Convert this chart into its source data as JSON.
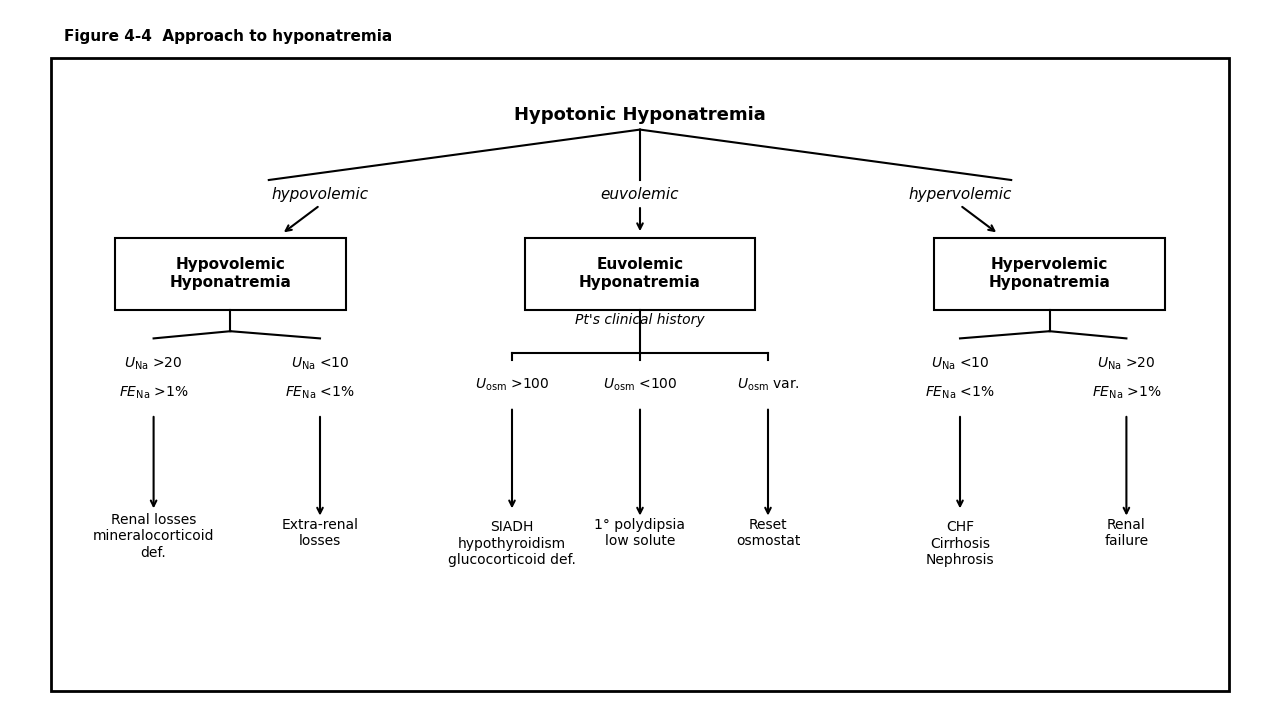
{
  "figure_title": "Figure 4-4  Approach to hyponatremia",
  "bg_color": "#ffffff",
  "box_color": "#ffffff",
  "box_edge_color": "#000000",
  "text_color": "#000000",
  "title_text": "Hypotonic Hyponatremia",
  "branch_labels": [
    "hypovolemic",
    "euvolemic",
    "hypervolemic"
  ],
  "box1_text": "Hypovolemic\nHyponatremia",
  "box2_text": "Euvolemic\nHyponatremia",
  "box3_text": "Hypervolemic\nHyponatremia",
  "hypo_branch_left_label1": "U",
  "hypo_branch_left_sub1": "Na",
  "hypo_branch_left_val1": " >20",
  "hypo_branch_left_label2": "FE",
  "hypo_branch_left_sub2": "Na",
  "hypo_branch_left_val2": " >1%",
  "hypo_branch_right_label1": "U",
  "hypo_branch_right_sub1": "Na",
  "hypo_branch_right_val1": " <10",
  "hypo_branch_right_label2": "FE",
  "hypo_branch_right_sub2": "Na",
  "hypo_branch_right_val2": " <1%",
  "euvo_branch_center": "Pt's clinical history",
  "euvo_left_label1": "U",
  "euvo_left_sub1": "osm",
  "euvo_left_val1": " >100",
  "euvo_mid_label1": "U",
  "euvo_mid_sub1": "osm",
  "euvo_mid_val1": " <100",
  "euvo_right_label1": "U",
  "euvo_right_sub1": "osm",
  "euvo_right_val1": " var.",
  "hyper_left_label1": "U",
  "hyper_left_sub1": "Na",
  "hyper_left_val1": " <10",
  "hyper_left_label2": "FE",
  "hyper_left_sub2": "Na",
  "hyper_left_val2": " <1%",
  "hyper_right_label1": "U",
  "hyper_right_sub1": "Na",
  "hyper_right_val1": " >20",
  "hyper_right_label2": "FE",
  "hyper_right_sub2": "Na",
  "hyper_right_val2": " >1%",
  "outcome_renal_losses": "Renal losses\nmineralocorticoid\ndef.",
  "outcome_extrarenal": "Extra-renal\nlosses",
  "outcome_siadh": "SIADH\nhypothyroidism\nglucocorticoid def.",
  "outcome_polydipsia": "1° polydipsia\nlow solute",
  "outcome_reset": "Reset\nosmostat",
  "outcome_chf": "CHF\nCirrhosis\nNephrosis",
  "outcome_renal_failure": "Renal\nfailure"
}
